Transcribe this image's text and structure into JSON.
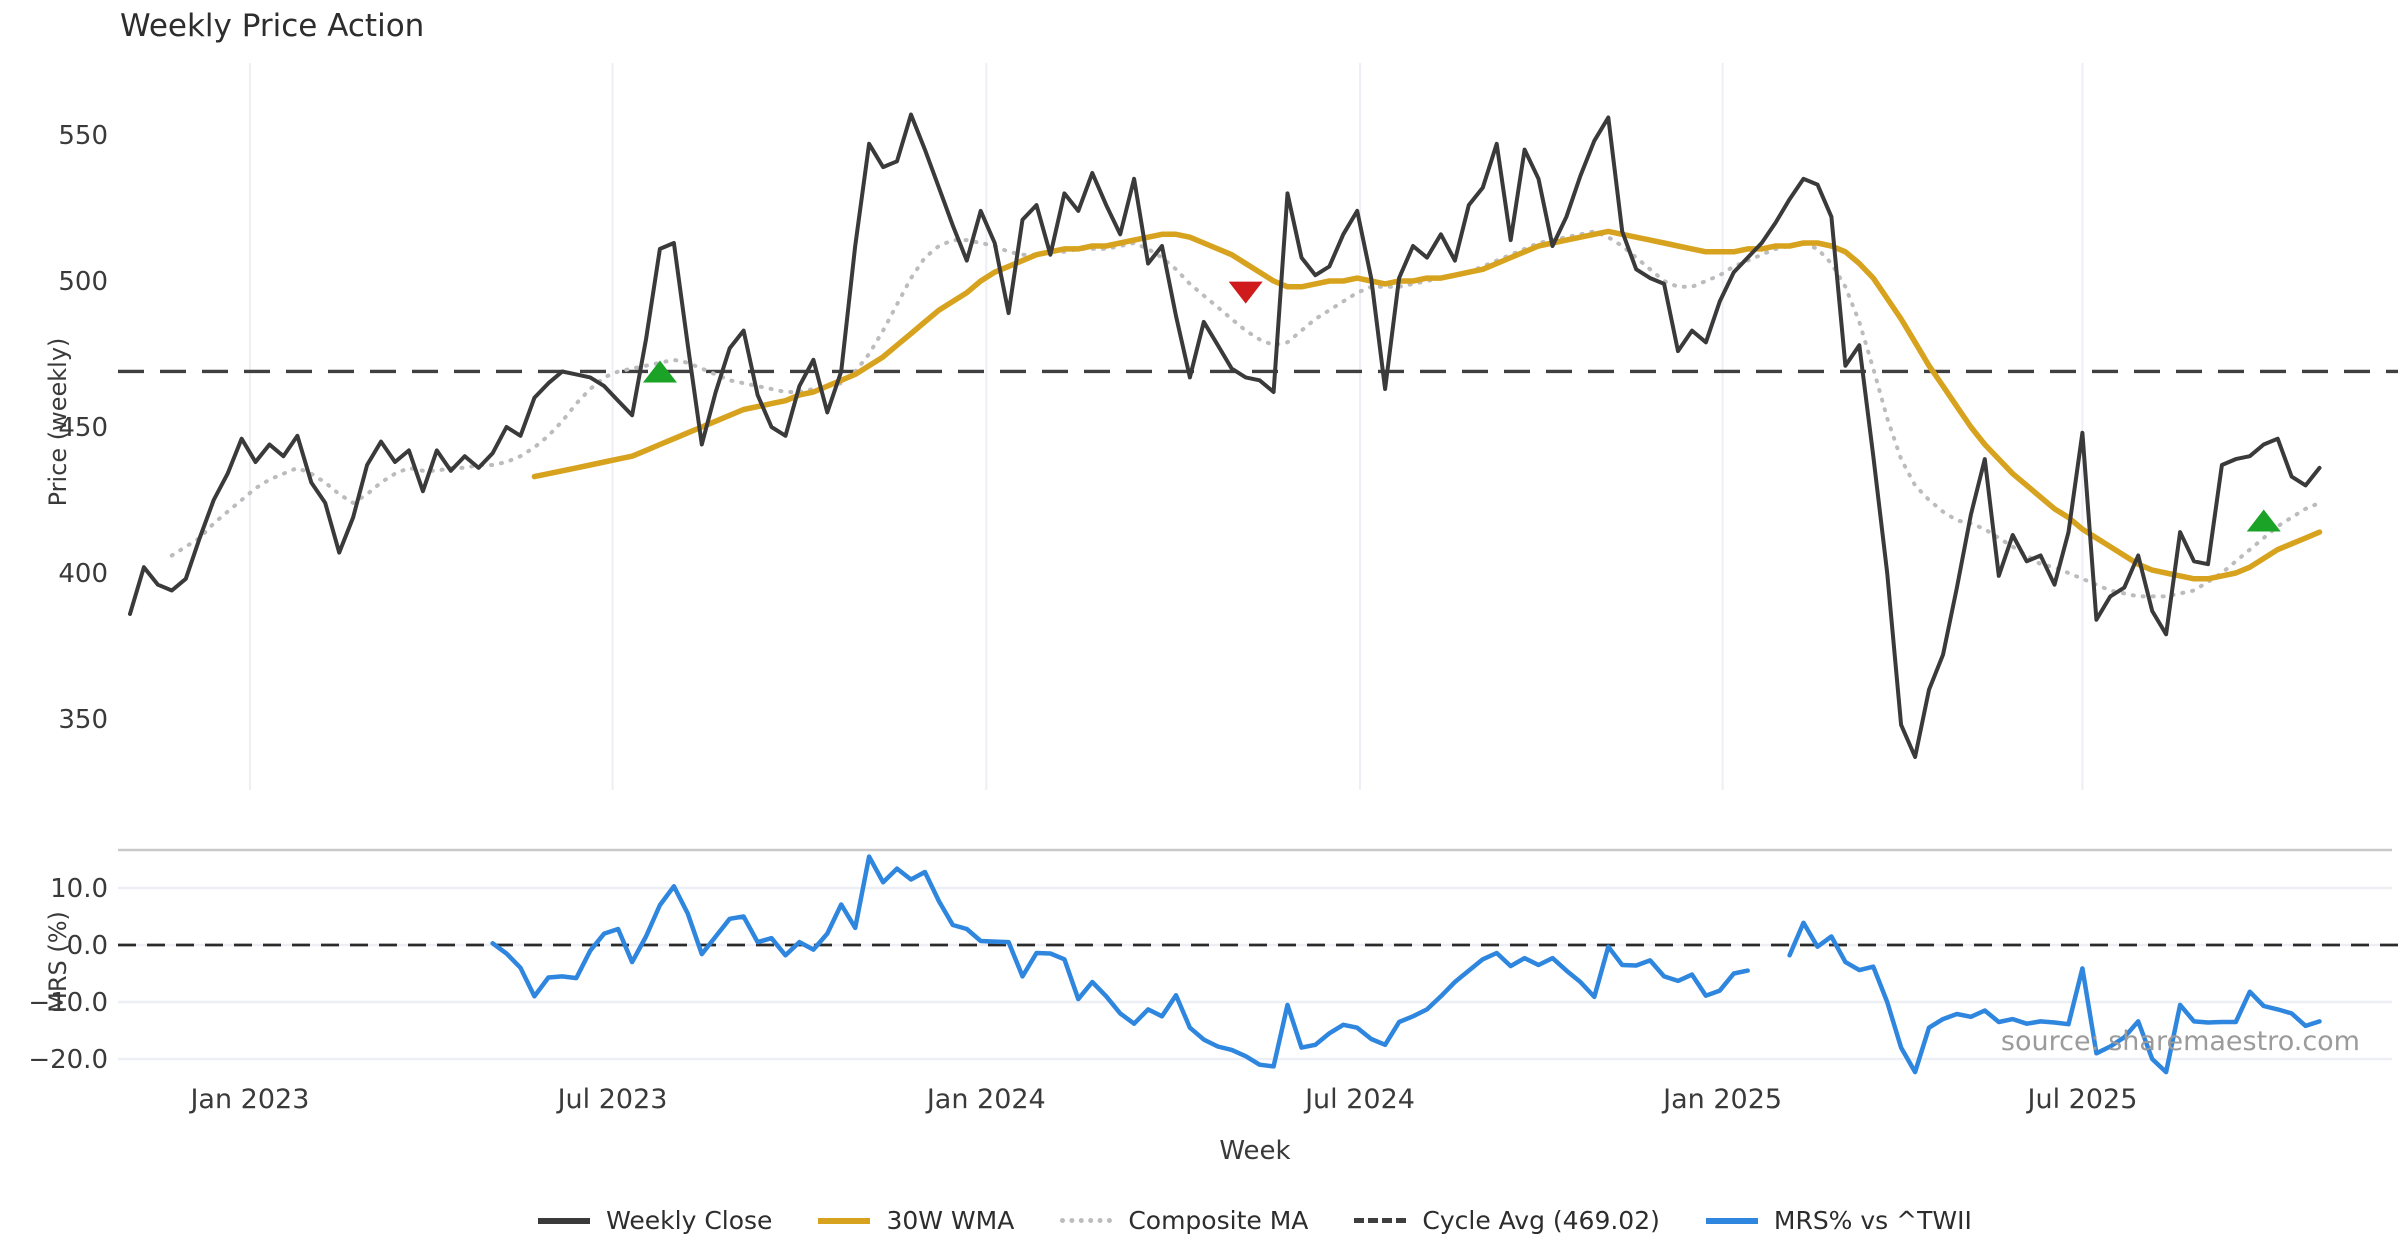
{
  "title": "Weekly Price Action",
  "source_note": "source: sharemaestro.com",
  "colors": {
    "close": "#3a3a3a",
    "wma": "#d7a21d",
    "composite": "#bcbcbe",
    "cycle": "#3f3f3f",
    "mrs": "#2e86de",
    "buy": "#1aa327",
    "sell": "#cf1b1b",
    "grid": "#edeff4",
    "panel_border": "#c9c9c9",
    "text": "#3a3a3a",
    "muted": "#9b9b9b"
  },
  "legend": [
    {
      "label": "Weekly Close",
      "swatch": "solid",
      "color": "#3a3a3a"
    },
    {
      "label": "30W WMA",
      "swatch": "solid",
      "color": "#d7a21d"
    },
    {
      "label": "Composite MA",
      "swatch": "dotted",
      "color": "#bcbcbe"
    },
    {
      "label": "Cycle Avg (469.02)",
      "swatch": "dashed",
      "color": "#3f3f3f"
    },
    {
      "label": "MRS% vs ^TWII",
      "swatch": "solid",
      "color": "#2e86de"
    }
  ],
  "chart_data": {
    "type": "line",
    "panels": [
      {
        "id": "price",
        "ylabel": "Price (weekly)",
        "ylim": [
          331,
          575
        ],
        "yticks": [
          {
            "v": 550,
            "label": "550"
          },
          {
            "v": 500,
            "label": "500"
          },
          {
            "v": 450,
            "label": "450"
          },
          {
            "v": 400,
            "label": "400"
          },
          {
            "v": 350,
            "label": "350"
          }
        ]
      },
      {
        "id": "mrs",
        "ylabel": "MRS (%)",
        "ylim": [
          -22.6,
          16.7
        ],
        "yticks": [
          {
            "v": 10,
            "label": "10.0"
          },
          {
            "v": 0,
            "label": "0.0"
          },
          {
            "v": -10,
            "label": "−10.0"
          },
          {
            "v": -20,
            "label": "−20.0"
          }
        ]
      }
    ],
    "xlabel": "Week",
    "x_unit": "week index",
    "x_ticks": [
      {
        "label": "Jan 2023",
        "week": 8.6
      },
      {
        "label": "Jul 2023",
        "week": 34.6
      },
      {
        "label": "Jan 2024",
        "week": 61.4
      },
      {
        "label": "Jul 2024",
        "week": 88.2
      },
      {
        "label": "Jan 2025",
        "week": 114.2
      },
      {
        "label": "Jul 2025",
        "week": 140.0
      }
    ],
    "cycle_avg": 469.02,
    "series": [
      {
        "name": "Weekly Close",
        "panel": "price",
        "start_week": 0,
        "style": "solid",
        "width": 4,
        "color_key": "close",
        "values": [
          386,
          402,
          396,
          394,
          398,
          412,
          425,
          434,
          446,
          438,
          444,
          440,
          447,
          431,
          424,
          407,
          419,
          437,
          445,
          438,
          442,
          428,
          442,
          435,
          440,
          436,
          441,
          450,
          447,
          460,
          465,
          469,
          468,
          467,
          464,
          459,
          454,
          480,
          511,
          513,
          478,
          444,
          462,
          477,
          483,
          461,
          450,
          447,
          464,
          473,
          455,
          469,
          512,
          547,
          539,
          541,
          557,
          545,
          532,
          519,
          507,
          524,
          513,
          489,
          521,
          526,
          509,
          530,
          524,
          537,
          526,
          516,
          535,
          506,
          512,
          488,
          467,
          486,
          478,
          470,
          467,
          466,
          462,
          530,
          508,
          502,
          505,
          516,
          524,
          501,
          463,
          501,
          512,
          508,
          516,
          507,
          526,
          532,
          547,
          514,
          545,
          535,
          512,
          522,
          536,
          548,
          556,
          517,
          504,
          501,
          499,
          476,
          483,
          479,
          493,
          503,
          508,
          513,
          520,
          528,
          535,
          533,
          522,
          471,
          478,
          440,
          400,
          348,
          337,
          360,
          372,
          395,
          420,
          439,
          399,
          413,
          404,
          406,
          396,
          414,
          448,
          384,
          392,
          395,
          406,
          387,
          379,
          414,
          404,
          403,
          437,
          439,
          440,
          444,
          446,
          433,
          430,
          436
        ]
      },
      {
        "name": "30W WMA",
        "panel": "price",
        "start_week": 29,
        "style": "solid",
        "width": 5.5,
        "color_key": "wma",
        "values": [
          433,
          434,
          435,
          436,
          437,
          438,
          439,
          440,
          442,
          444,
          446,
          448,
          450,
          452,
          454,
          456,
          457,
          458,
          459,
          461,
          462,
          464,
          466,
          468,
          471,
          474,
          478,
          482,
          486,
          490,
          493,
          496,
          500,
          503,
          505,
          507,
          509,
          510,
          511,
          511,
          512,
          512,
          513,
          514,
          515,
          516,
          516,
          515,
          513,
          511,
          509,
          506,
          503,
          500,
          498,
          498,
          499,
          500,
          500,
          501,
          500,
          499,
          500,
          500,
          501,
          501,
          502,
          503,
          504,
          506,
          508,
          510,
          512,
          513,
          514,
          515,
          516,
          517,
          516,
          515,
          514,
          513,
          512,
          511,
          510,
          510,
          510,
          511,
          511,
          512,
          512,
          513,
          513,
          512,
          510,
          506,
          501,
          494,
          487,
          479,
          471,
          464,
          457,
          450,
          444,
          439,
          434,
          430,
          426,
          422,
          419,
          415,
          412,
          409,
          406,
          403,
          401,
          400,
          399,
          398,
          398,
          399,
          400,
          402,
          405,
          408,
          410,
          412,
          414
        ]
      },
      {
        "name": "Composite MA",
        "panel": "price",
        "start_week": 3,
        "style": "dotted",
        "width": 4,
        "color_key": "composite",
        "values": [
          406,
          409,
          412,
          417,
          421,
          425,
          429,
          432,
          434,
          436,
          434,
          431,
          427,
          424,
          427,
          431,
          434,
          436,
          435,
          435,
          436,
          436,
          437,
          437,
          438,
          440,
          443,
          447,
          452,
          458,
          463,
          467,
          469,
          470,
          471,
          472,
          473,
          472,
          470,
          468,
          466,
          465,
          464,
          463,
          462,
          462,
          463,
          464,
          465,
          469,
          475,
          483,
          492,
          501,
          508,
          512,
          514,
          514,
          513,
          512,
          510,
          509,
          509,
          510,
          510,
          511,
          511,
          511,
          512,
          513,
          511,
          508,
          504,
          499,
          495,
          491,
          487,
          483,
          480,
          478,
          479,
          483,
          487,
          490,
          493,
          496,
          498,
          498,
          498,
          499,
          500,
          501,
          502,
          503,
          505,
          507,
          509,
          511,
          513,
          514,
          515,
          516,
          517,
          515,
          512,
          508,
          504,
          500,
          498,
          498,
          500,
          502,
          505,
          507,
          509,
          511,
          512,
          513,
          511,
          506,
          498,
          486,
          470,
          453,
          439,
          430,
          425,
          421,
          418,
          417,
          415,
          412,
          409,
          406,
          403,
          402,
          400,
          398,
          396,
          394,
          393,
          392,
          392,
          392,
          393,
          394,
          397,
          400,
          404,
          408,
          412,
          416,
          419,
          422,
          424
        ]
      },
      {
        "name": "MRS% vs ^TWII",
        "panel": "mrs",
        "start_week": 26,
        "style": "solid",
        "width": 4.5,
        "color_key": "mrs",
        "values": [
          0.3,
          -1.5,
          -4,
          -9,
          -5.7,
          -5.5,
          -5.8,
          -1,
          2,
          2.8,
          -3,
          1.5,
          7,
          10.3,
          5.5,
          -1.6,
          1.5,
          4.6,
          5,
          0.5,
          1.2,
          -1.8,
          0.5,
          -0.8,
          2,
          7.1,
          3,
          15.5,
          11,
          13.4,
          11.5,
          12.8,
          7.7,
          3.5,
          2.8,
          0.7,
          0.6,
          0.5,
          -5.5,
          -1.4,
          -1.5,
          -2.5,
          -9.5,
          -6.5,
          -9,
          -12,
          -13.8,
          -11.3,
          -12.5,
          -8.8,
          -14.5,
          -16.6,
          -17.8,
          -18.4,
          -19.5,
          -21,
          -21.3,
          -10.5,
          -18,
          -17.5,
          -15.5,
          -14,
          -14.5,
          -16.5,
          -17.5,
          -13.5,
          -12.5,
          -11.3,
          -9,
          -6.5,
          -4.5,
          -2.5,
          -1.4,
          -3.7,
          -2.3,
          -3.5,
          -2.3,
          -4.5,
          -6.5,
          -9.1,
          -0.3,
          -3.5,
          -3.6,
          -2.7,
          -5.5,
          -6.3,
          -5.2,
          -8.9,
          -8,
          -5,
          -4.5,
          null,
          null,
          -1.8,
          3.9,
          -0.3,
          1.5,
          -3,
          -4.4,
          -3.8,
          -10,
          -18,
          -22.3,
          -14.5,
          -13,
          -12.1,
          -12.6,
          -11.5,
          -13.5,
          -13,
          -13.8,
          -13.4,
          -13.6,
          -13.9,
          -4.1,
          -19,
          -17.8,
          -16.2,
          -13.4,
          -20,
          -22.3,
          -10.5,
          -13.4,
          -13.6,
          -13.5,
          -13.5,
          -8.2,
          -10.7,
          -11.3,
          -12,
          -14.2,
          -13.4
        ]
      }
    ],
    "markers": [
      {
        "week": 38,
        "price": 469,
        "type": "buy"
      },
      {
        "week": 80,
        "price": 496,
        "type": "sell"
      },
      {
        "week": 153,
        "price": 418,
        "type": "buy"
      }
    ]
  }
}
